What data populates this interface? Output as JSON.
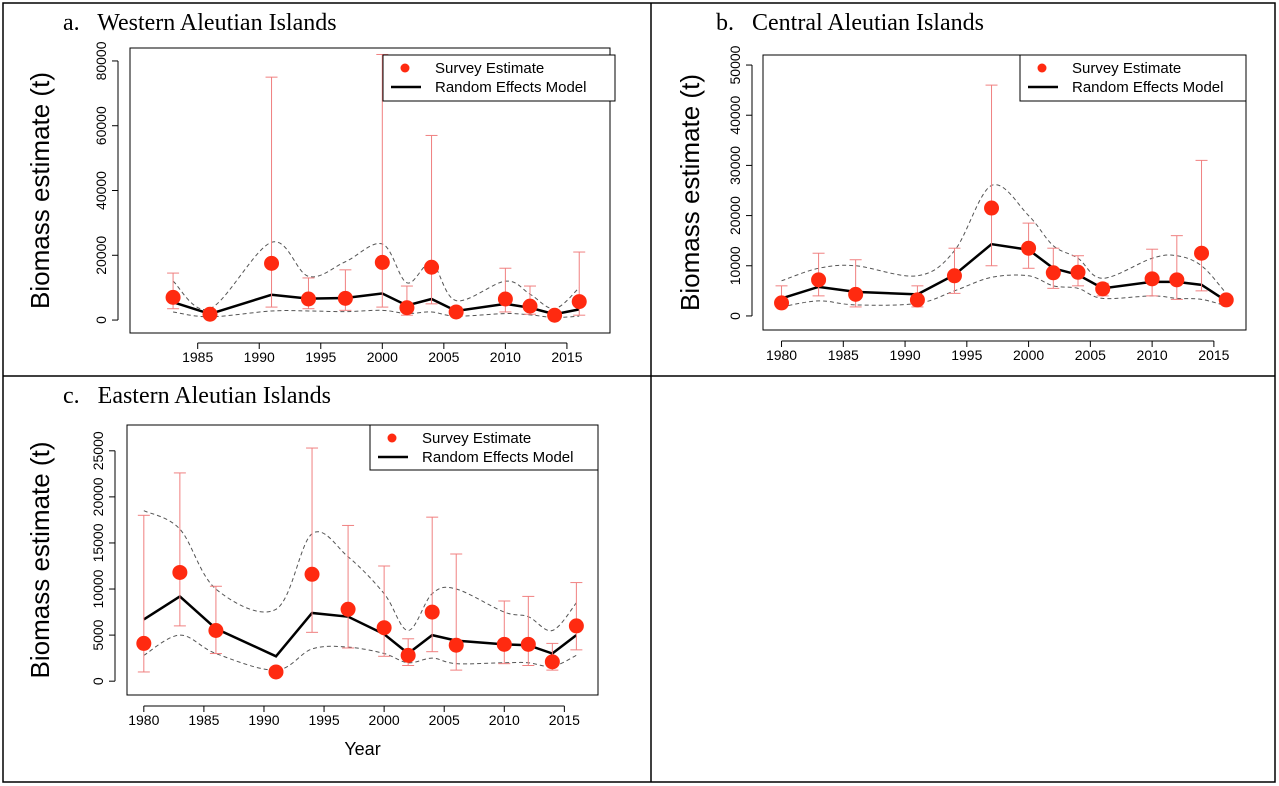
{
  "chart_data": [
    {
      "type": "line",
      "title": "a.   Western Aleutian Islands",
      "ylabel": "Biomass estimate (t)",
      "xlim": [
        1979.5,
        2018.5
      ],
      "ylim": [
        -4000,
        84000
      ],
      "xticks": [
        1985,
        1990,
        1995,
        2000,
        2005,
        2010,
        2015
      ],
      "yticks": [
        0,
        20000,
        40000,
        60000,
        80000
      ],
      "x": [
        1983,
        1986,
        1991,
        1994,
        1997,
        2000,
        2002,
        2004,
        2006,
        2010,
        2012,
        2014,
        2016
      ],
      "series": [
        {
          "name": "Survey Estimate",
          "color": "#ff2a10",
          "error_color": "#f08080",
          "values": [
            7000,
            1800,
            17500,
            6500,
            6700,
            17800,
            3800,
            16300,
            2500,
            6500,
            4300,
            1500,
            5700
          ],
          "lower": [
            3500,
            1000,
            4000,
            3500,
            3000,
            4000,
            1500,
            5000,
            1500,
            2500,
            1800,
            900,
            1500
          ],
          "upper": [
            14500,
            2500,
            75000,
            13000,
            15500,
            82000,
            10500,
            57000,
            4000,
            16000,
            10500,
            2500,
            21000
          ]
        },
        {
          "name": "Random Effects Model",
          "color": "#000000",
          "band_color": "#555555",
          "values": [
            5500,
            1900,
            7800,
            6600,
            6800,
            8200,
            4500,
            6500,
            2800,
            5000,
            3800,
            1800,
            3300
          ],
          "band_upper": [
            12000,
            3500,
            24000,
            13500,
            18000,
            23500,
            11500,
            17500,
            6000,
            12000,
            8000,
            3500,
            10000
          ],
          "band_lower": [
            2500,
            1000,
            2800,
            2800,
            2600,
            3000,
            2000,
            2500,
            1200,
            2000,
            1600,
            800,
            1200
          ]
        }
      ]
    },
    {
      "type": "line",
      "title": "b.   Central Aleutian Islands",
      "ylabel": "Biomass estimate (t)",
      "xlim": [
        1978.5,
        2017.6
      ],
      "ylim": [
        -2800,
        52000
      ],
      "xticks": [
        1980,
        1985,
        1990,
        1995,
        2000,
        2005,
        2010,
        2015
      ],
      "yticks": [
        0,
        10000,
        20000,
        30000,
        40000,
        50000
      ],
      "x": [
        1980,
        1983,
        1986,
        1991,
        1994,
        1997,
        2000,
        2002,
        2004,
        2006,
        2010,
        2012,
        2014,
        2016
      ],
      "series": [
        {
          "name": "Survey Estimate",
          "color": "#ff2a10",
          "error_color": "#f08080",
          "values": [
            2600,
            7200,
            4300,
            3200,
            8000,
            21500,
            13500,
            8600,
            8700,
            5400,
            7400,
            7200,
            12500,
            3200
          ],
          "lower": [
            1800,
            4000,
            1800,
            1800,
            4500,
            10000,
            9500,
            5500,
            6000,
            4000,
            4000,
            3300,
            5000,
            2500
          ],
          "upper": [
            6000,
            12500,
            11200,
            6000,
            13500,
            46000,
            18500,
            13500,
            12000,
            6500,
            13300,
            16000,
            31000,
            4000
          ]
        },
        {
          "name": "Random Effects Model",
          "color": "#000000",
          "band_color": "#555555",
          "values": [
            3500,
            5800,
            4800,
            4300,
            8200,
            14300,
            13200,
            9500,
            8200,
            5500,
            6800,
            6800,
            6200,
            3000
          ],
          "band_upper": [
            7000,
            9500,
            10000,
            8000,
            13000,
            26000,
            20000,
            14000,
            11500,
            7500,
            11500,
            12000,
            10000,
            4500
          ],
          "band_lower": [
            1800,
            3000,
            2200,
            2500,
            5000,
            7700,
            8000,
            6000,
            5500,
            3500,
            4000,
            3500,
            3300,
            2000
          ]
        }
      ]
    },
    {
      "type": "line",
      "title": "c.   Eastern Aleutian Islands",
      "ylabel": "Biomass estimate (t)",
      "xlabel": "Year",
      "xlim": [
        1978.6,
        2017.8
      ],
      "ylim": [
        -1500,
        27800
      ],
      "xticks": [
        1980,
        1985,
        1990,
        1995,
        2000,
        2005,
        2010,
        2015
      ],
      "yticks": [
        0,
        5000,
        10000,
        15000,
        20000,
        25000
      ],
      "x": [
        1980,
        1983,
        1986,
        1991,
        1994,
        1997,
        2000,
        2002,
        2004,
        2006,
        2010,
        2012,
        2014,
        2016
      ],
      "series": [
        {
          "name": "Survey Estimate",
          "color": "#ff2a10",
          "error_color": "#f08080",
          "values": [
            4100,
            11800,
            5500,
            1000,
            11600,
            7800,
            5800,
            2800,
            7500,
            3900,
            4000,
            4000,
            2100,
            6000
          ],
          "lower": [
            1000,
            6000,
            3000,
            700,
            5300,
            3600,
            2700,
            1700,
            3200,
            1200,
            1900,
            1700,
            1200,
            3400
          ],
          "upper": [
            18000,
            22600,
            10300,
            1300,
            25300,
            16900,
            12500,
            4600,
            17800,
            13800,
            8700,
            9200,
            4100,
            10700
          ]
        },
        {
          "name": "Random Effects Model",
          "color": "#000000",
          "band_color": "#555555",
          "values": [
            6700,
            9200,
            5700,
            2700,
            7400,
            7000,
            5100,
            3000,
            5000,
            4400,
            4000,
            3900,
            3000,
            5000
          ],
          "band_upper": [
            18500,
            16500,
            10000,
            7800,
            16000,
            13500,
            9500,
            5500,
            9500,
            10000,
            7500,
            7000,
            5500,
            8500
          ],
          "band_lower": [
            2800,
            5000,
            3000,
            1200,
            3500,
            3700,
            3000,
            2000,
            2500,
            1900,
            2000,
            2000,
            1600,
            2800
          ]
        }
      ]
    }
  ]
}
